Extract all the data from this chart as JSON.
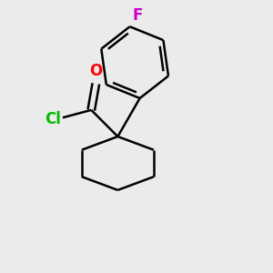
{
  "background_color": "#ebebeb",
  "bond_color": "#000000",
  "bond_width": 1.8,
  "O_color": "#ff0000",
  "Cl_color": "#00bb00",
  "F_color": "#cc00cc",
  "O_label": "O",
  "Cl_label": "Cl",
  "F_label": "F",
  "font_size_heteroatom": 12
}
